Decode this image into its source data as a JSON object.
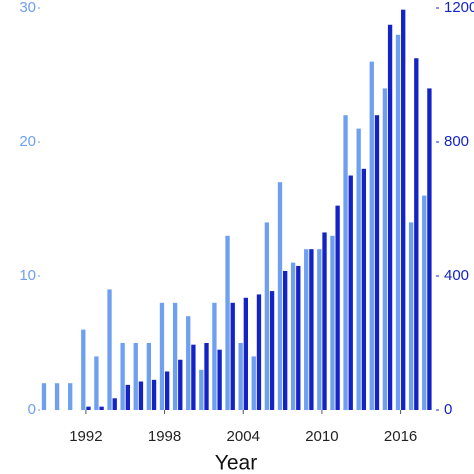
{
  "chart_data": {
    "type": "bar",
    "x_label": "Year",
    "x": [
      1989,
      1990,
      1991,
      1992,
      1993,
      1994,
      1995,
      1996,
      1997,
      1998,
      1999,
      2000,
      2001,
      2002,
      2003,
      2004,
      2005,
      2006,
      2007,
      2008,
      2009,
      2010,
      2011,
      2012,
      2013,
      2014,
      2015,
      2016,
      2017,
      2018
    ],
    "xlim": [
      1988.5,
      2018.7
    ],
    "xticks": [
      1992,
      1998,
      2004,
      2010,
      2016
    ],
    "ylim": [
      0,
      30
    ],
    "yticks": [
      0,
      10,
      20,
      30
    ],
    "y2lim": [
      0,
      1200
    ],
    "y2ticks": [
      0,
      400,
      800,
      1200
    ],
    "series": [
      {
        "color": "#6fa0ef",
        "axis": "y",
        "values": [
          2,
          2,
          2,
          6,
          4,
          9,
          5,
          5,
          5,
          8,
          8,
          7,
          3,
          8,
          13,
          5,
          4,
          14,
          17,
          11,
          12,
          12,
          13,
          22,
          21,
          26,
          24,
          28,
          14,
          16
        ]
      },
      {
        "color": "#1424c4",
        "axis": "y2",
        "values": [
          0,
          0,
          0,
          10,
          10,
          35,
          75,
          85,
          90,
          115,
          150,
          195,
          200,
          180,
          320,
          335,
          345,
          355,
          415,
          430,
          480,
          530,
          610,
          700,
          720,
          880,
          1150,
          1195,
          1050,
          960
        ]
      }
    ]
  }
}
